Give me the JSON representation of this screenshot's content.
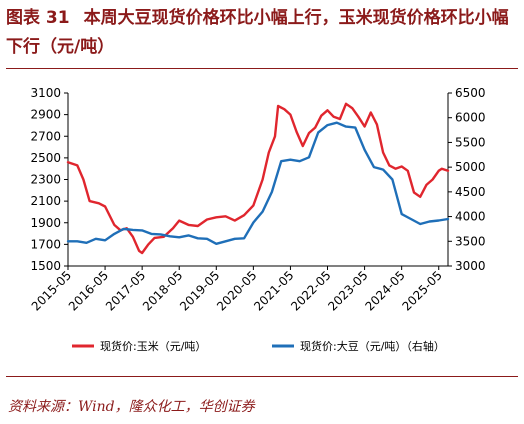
{
  "header": {
    "figure_no": "图表 31",
    "title": "本周大豆现货价格环比小幅上行，玉米现货价格环比小幅下行（元/吨）"
  },
  "footer": {
    "source": "资料来源：Wind，隆众化工，华创证券"
  },
  "colors": {
    "corn": "#e0262e",
    "soy": "#1f6fb8"
  },
  "chart_data": {
    "type": "line",
    "title": "",
    "grid": false,
    "legend_position": "bottom",
    "x_ticks": [
      "2015-05",
      "2016-05",
      "2017-05",
      "2018-05",
      "2019-05",
      "2020-05",
      "2021-05",
      "2022-05",
      "2023-05",
      "2024-05",
      "2025-05"
    ],
    "left_axis": {
      "ylim": [
        1500,
        3100
      ],
      "ticks": [
        1500,
        1700,
        1900,
        2100,
        2300,
        2500,
        2700,
        2900,
        3100
      ]
    },
    "right_axis": {
      "ylim": [
        3000,
        6500
      ],
      "ticks": [
        3000,
        3500,
        4000,
        4500,
        5000,
        5500,
        6000,
        6500
      ]
    },
    "series": [
      {
        "name": "现货价:玉米（元/吨）",
        "axis": "left",
        "color": "#e0262e",
        "points": [
          [
            "2015-05",
            2460
          ],
          [
            "2015-08",
            2430
          ],
          [
            "2015-10",
            2300
          ],
          [
            "2015-12",
            2100
          ],
          [
            "2016-03",
            2080
          ],
          [
            "2016-05",
            2050
          ],
          [
            "2016-08",
            1880
          ],
          [
            "2016-10",
            1830
          ],
          [
            "2016-12",
            1850
          ],
          [
            "2017-02",
            1770
          ],
          [
            "2017-04",
            1640
          ],
          [
            "2017-05",
            1620
          ],
          [
            "2017-07",
            1700
          ],
          [
            "2017-09",
            1760
          ],
          [
            "2017-12",
            1770
          ],
          [
            "2018-03",
            1850
          ],
          [
            "2018-05",
            1920
          ],
          [
            "2018-08",
            1880
          ],
          [
            "2018-11",
            1870
          ],
          [
            "2019-02",
            1930
          ],
          [
            "2019-05",
            1950
          ],
          [
            "2019-08",
            1960
          ],
          [
            "2019-11",
            1920
          ],
          [
            "2020-02",
            1970
          ],
          [
            "2020-05",
            2060
          ],
          [
            "2020-08",
            2300
          ],
          [
            "2020-10",
            2550
          ],
          [
            "2020-12",
            2700
          ],
          [
            "2021-01",
            2980
          ],
          [
            "2021-03",
            2950
          ],
          [
            "2021-05",
            2900
          ],
          [
            "2021-07",
            2740
          ],
          [
            "2021-09",
            2610
          ],
          [
            "2021-11",
            2730
          ],
          [
            "2022-01",
            2780
          ],
          [
            "2022-03",
            2890
          ],
          [
            "2022-05",
            2940
          ],
          [
            "2022-07",
            2880
          ],
          [
            "2022-09",
            2860
          ],
          [
            "2022-11",
            3000
          ],
          [
            "2023-01",
            2960
          ],
          [
            "2023-03",
            2880
          ],
          [
            "2023-05",
            2790
          ],
          [
            "2023-07",
            2920
          ],
          [
            "2023-09",
            2810
          ],
          [
            "2023-11",
            2550
          ],
          [
            "2024-01",
            2430
          ],
          [
            "2024-03",
            2400
          ],
          [
            "2024-05",
            2420
          ],
          [
            "2024-07",
            2380
          ],
          [
            "2024-09",
            2180
          ],
          [
            "2024-11",
            2140
          ],
          [
            "2025-01",
            2250
          ],
          [
            "2025-03",
            2300
          ],
          [
            "2025-05",
            2380
          ],
          [
            "2025-06",
            2400
          ],
          [
            "2025-08",
            2380
          ]
        ]
      },
      {
        "name": "现货价:大豆（元/吨）（右轴）",
        "axis": "right",
        "color": "#1f6fb8",
        "points": [
          [
            "2015-05",
            3500
          ],
          [
            "2015-08",
            3500
          ],
          [
            "2015-11",
            3470
          ],
          [
            "2016-02",
            3550
          ],
          [
            "2016-05",
            3520
          ],
          [
            "2016-08",
            3650
          ],
          [
            "2016-11",
            3750
          ],
          [
            "2017-02",
            3730
          ],
          [
            "2017-05",
            3720
          ],
          [
            "2017-08",
            3650
          ],
          [
            "2017-11",
            3640
          ],
          [
            "2018-02",
            3600
          ],
          [
            "2018-05",
            3580
          ],
          [
            "2018-08",
            3620
          ],
          [
            "2018-11",
            3560
          ],
          [
            "2019-02",
            3550
          ],
          [
            "2019-05",
            3450
          ],
          [
            "2019-08",
            3500
          ],
          [
            "2019-11",
            3550
          ],
          [
            "2020-02",
            3560
          ],
          [
            "2020-05",
            3880
          ],
          [
            "2020-08",
            4100
          ],
          [
            "2020-11",
            4500
          ],
          [
            "2021-02",
            5120
          ],
          [
            "2021-05",
            5150
          ],
          [
            "2021-08",
            5120
          ],
          [
            "2021-11",
            5200
          ],
          [
            "2022-02",
            5700
          ],
          [
            "2022-05",
            5850
          ],
          [
            "2022-08",
            5900
          ],
          [
            "2022-11",
            5820
          ],
          [
            "2023-02",
            5800
          ],
          [
            "2023-05",
            5350
          ],
          [
            "2023-08",
            5000
          ],
          [
            "2023-11",
            4950
          ],
          [
            "2024-02",
            4750
          ],
          [
            "2024-05",
            4050
          ],
          [
            "2024-08",
            3950
          ],
          [
            "2024-11",
            3850
          ],
          [
            "2025-02",
            3900
          ],
          [
            "2025-05",
            3920
          ],
          [
            "2025-08",
            3950
          ]
        ]
      }
    ]
  }
}
